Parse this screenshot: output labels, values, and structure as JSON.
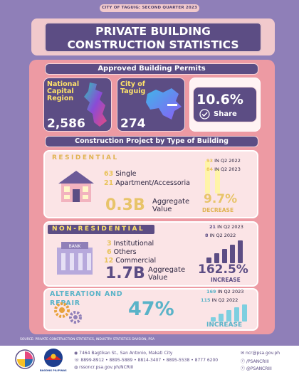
{
  "header": {
    "tag": "CITY OF TAGUIG: SECOND QUARTER 2023"
  },
  "title": {
    "line1": "PRIVATE BUILDING",
    "line2": "CONSTRUCTION STATISTICS"
  },
  "permits": {
    "heading": "Approved Building Permits",
    "ncr_label": "National Capital Region",
    "ncr_value": "2,586",
    "taguig_label": "City of Taguig",
    "taguig_value": "274",
    "share_value": "10.6%",
    "share_label": "Share"
  },
  "by_type": {
    "heading": "Construction Project by Type of Building"
  },
  "residential": {
    "title": "RESIDENTIAL",
    "single_count": "63",
    "single_label": "Single",
    "apt_count": "21",
    "apt_label": "Apartment/Accessoria",
    "value": "0.3B",
    "value_label1": "Aggregate",
    "value_label2": "Value",
    "q2022_num": "93",
    "q2022_label": "IN Q2 2022",
    "q2023_num": "84",
    "q2023_label": "IN Q2 2023",
    "change": "9.7%",
    "change_label": "DECREASE"
  },
  "nonres": {
    "title": "NON-RESIDENTIAL",
    "inst_count": "3",
    "inst_label": "Institutional",
    "other_count": "6",
    "other_label": "Others",
    "comm_count": "12",
    "comm_label": "Commercial",
    "value": "1.7B",
    "value_label1": "Aggregate",
    "value_label2": "Value",
    "q2023_num": "21",
    "q2023_label": "IN Q2 2023",
    "q2022_num": "8",
    "q2022_label": "IN Q2 2022",
    "change": "162.5%",
    "change_label": "INCREASE",
    "bank_sign": "BANK"
  },
  "alteration": {
    "title": "ALTERATION AND REPAIR",
    "value": "47%",
    "q2023_num": "169",
    "q2023_label": "IN Q2 2023",
    "q2022_num": "115",
    "q2022_label": "IN Q2 2022",
    "change_label": "INCREASE"
  },
  "source": "SOURCE: PRIVATE CONSTRUCTION STATISTICS, INDUSTRY STATISTICS DIVISION, PSA",
  "footer": {
    "address": "7464 Bagtikan St., San Antonio, Makati City",
    "phones": "8899-8912 • 8895-5889 • 8814-3407 • 8895-5538 • 8777 6200",
    "web": "rssoncr.psa.gov.ph/NCRIII",
    "email": "ncr@psa.gov.ph",
    "fb": "/PSANCRIII",
    "tw": "@PSANCRIII",
    "bp_label": "BAGONG PILIPINAS"
  },
  "colors": {
    "bg": "#8f7fb8",
    "purple": "#5c4d84",
    "pink": "#ed9aa3",
    "yellow": "#ffe36a"
  }
}
